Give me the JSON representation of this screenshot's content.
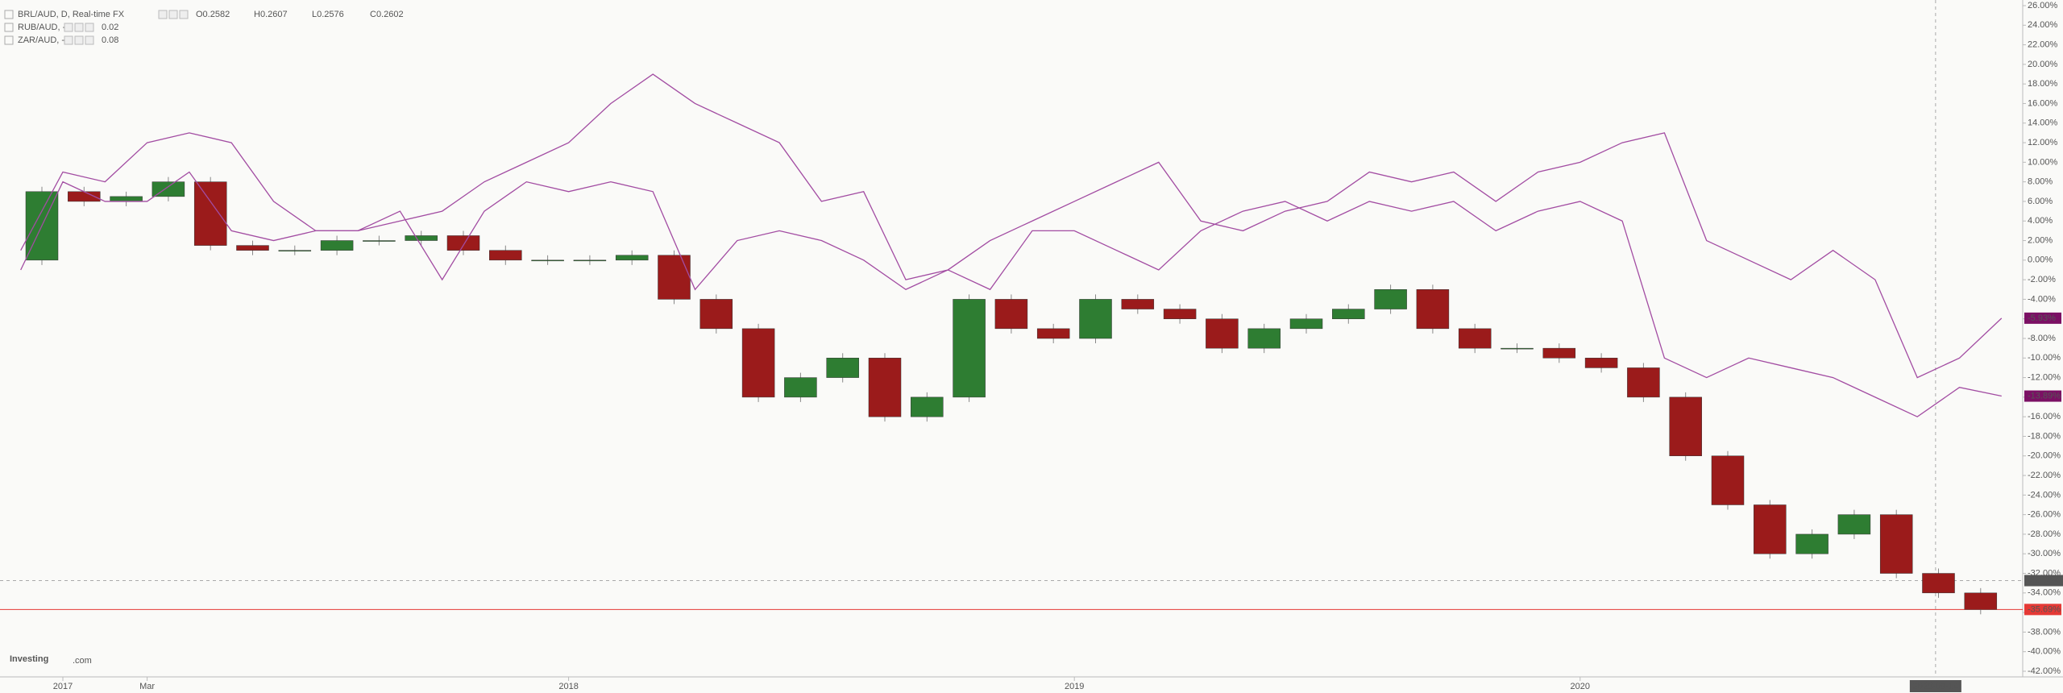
{
  "chart_data": {
    "type": "candle-compare",
    "legend": [
      {
        "name": "BRL/AUD, D, Real-time FX",
        "fields": [
          "O0.2582",
          "H0.2607",
          "L0.2576",
          "C0.2602"
        ]
      },
      {
        "name": "RUB/AUD, -",
        "fields": [
          "0.02"
        ]
      },
      {
        "name": "ZAR/AUD, -",
        "fields": [
          "0.08"
        ]
      }
    ],
    "logo": [
      "Investing",
      ".com"
    ],
    "x": [
      "2016-12",
      "2017-01",
      "2017-02",
      "2017-03",
      "2017-04",
      "2017-05",
      "2017-06",
      "2017-07",
      "2017-08",
      "2017-09",
      "2017-10",
      "2017-11",
      "2017-12",
      "2018-01",
      "2018-02",
      "2018-03",
      "2018-04",
      "2018-05",
      "2018-06",
      "2018-07",
      "2018-08",
      "2018-09",
      "2018-10",
      "2018-11",
      "2018-12",
      "2019-01",
      "2019-02",
      "2019-03",
      "2019-04",
      "2019-05",
      "2019-06",
      "2019-07",
      "2019-08",
      "2019-09",
      "2019-10",
      "2019-11",
      "2019-12",
      "2020-01",
      "2020-02",
      "2020-03",
      "2020-04",
      "2020-05",
      "2020-06",
      "2020-07",
      "2020-08",
      "2020-09",
      "2020-10",
      "2020-11"
    ],
    "series": [
      {
        "name": "BRL/AUD",
        "kind": "candle",
        "up_color": "#2e7d32",
        "down_color": "#9b1b1b",
        "values": [
          0,
          7,
          6,
          6.5,
          8,
          1.5,
          1,
          1,
          2,
          2,
          2.5,
          1,
          0,
          0,
          0,
          0.5,
          -4,
          -7,
          -14,
          -12,
          -10,
          -16,
          -14,
          -4,
          -7,
          -8,
          -4,
          -5,
          -6,
          -9,
          -7,
          -6,
          -5,
          -3,
          -7,
          -9,
          -9,
          -10,
          -11,
          -14,
          -20,
          -25,
          -30,
          -28,
          -26,
          -32,
          -34,
          -35.69
        ]
      },
      {
        "name": "RUB/AUD",
        "kind": "line",
        "color": "#a24ca2",
        "values": [
          1,
          9,
          8,
          12,
          13,
          12,
          6,
          3,
          3,
          4,
          5,
          8,
          10,
          12,
          16,
          19,
          16,
          14,
          12,
          6,
          7,
          -2,
          -1,
          2,
          4,
          6,
          8,
          10,
          4,
          3,
          5,
          6,
          9,
          8,
          9,
          6,
          9,
          10,
          12,
          13,
          2,
          0,
          -2,
          1,
          -2,
          -12,
          -10,
          -5.93
        ],
        "last_label": "-5.93%"
      },
      {
        "name": "ZAR/AUD",
        "kind": "line",
        "color": "#a24ca2",
        "values": [
          -1,
          8,
          6,
          6,
          9,
          3,
          2,
          3,
          3,
          5,
          -2,
          5,
          8,
          7,
          8,
          7,
          -3,
          2,
          3,
          2,
          0,
          -3,
          -1,
          -3,
          3,
          3,
          1,
          -1,
          3,
          5,
          6,
          4,
          6,
          5,
          6,
          3,
          5,
          6,
          4,
          -10,
          -12,
          -10,
          -11,
          -12,
          -14,
          -16,
          -13,
          -13.89
        ],
        "last_label": "-13.89%"
      }
    ],
    "price_line": {
      "value": -35.69,
      "label": "-35.69%",
      "color": "#e53935"
    },
    "crosshair": {
      "x": "2020-09-14",
      "y": -32.7393
    },
    "ylim": [
      -42,
      26
    ],
    "yticks": [
      {
        "value": 26,
        "label": "26.00%"
      },
      {
        "value": 24,
        "label": "24.00%"
      },
      {
        "value": 22,
        "label": "22.00%"
      },
      {
        "value": 20,
        "label": "20.00%"
      },
      {
        "value": 18,
        "label": "18.00%"
      },
      {
        "value": 16,
        "label": "16.00%"
      },
      {
        "value": 14,
        "label": "14.00%"
      },
      {
        "value": 12,
        "label": "12.00%"
      },
      {
        "value": 10,
        "label": "10.00%"
      },
      {
        "value": 8,
        "label": "8.00%"
      },
      {
        "value": 6,
        "label": "6.00%"
      },
      {
        "value": 4,
        "label": "4.00%"
      },
      {
        "value": 2,
        "label": "2.00%"
      },
      {
        "value": 0,
        "label": "0.00%"
      },
      {
        "value": -2,
        "label": "-2.00%"
      },
      {
        "value": -4,
        "label": "-4.00%"
      },
      {
        "value": -6,
        "label": "-6.00%"
      },
      {
        "value": -8,
        "label": "-8.00%"
      },
      {
        "value": -10,
        "label": "-10.00%"
      },
      {
        "value": -12,
        "label": "-12.00%"
      },
      {
        "value": -14,
        "label": "-14.00%"
      },
      {
        "value": -16,
        "label": "-16.00%"
      },
      {
        "value": -18,
        "label": "-18.00%"
      },
      {
        "value": -20,
        "label": "-20.00%"
      },
      {
        "value": -22,
        "label": "-22.00%"
      },
      {
        "value": -24,
        "label": "-24.00%"
      },
      {
        "value": -26,
        "label": "-26.00%"
      },
      {
        "value": -28,
        "label": "-28.00%"
      },
      {
        "value": -30,
        "label": "-30.00%"
      },
      {
        "value": -32,
        "label": "-32.00%"
      },
      {
        "value": -34,
        "label": "-34.00%"
      },
      {
        "value": -36,
        "label": "-36.00%"
      },
      {
        "value": -38,
        "label": "-38.00%"
      },
      {
        "value": -40,
        "label": "-40.00%"
      },
      {
        "value": -42,
        "label": "-42.00%"
      }
    ],
    "xticks": [
      {
        "value": "2017-01",
        "label": "2017"
      },
      {
        "value": "2017-03",
        "label": "Mar"
      },
      {
        "value": "2018-01",
        "label": "2018"
      },
      {
        "value": "2019-01",
        "label": "2019"
      },
      {
        "value": "2020-01",
        "label": "2020"
      }
    ],
    "grid": false
  }
}
